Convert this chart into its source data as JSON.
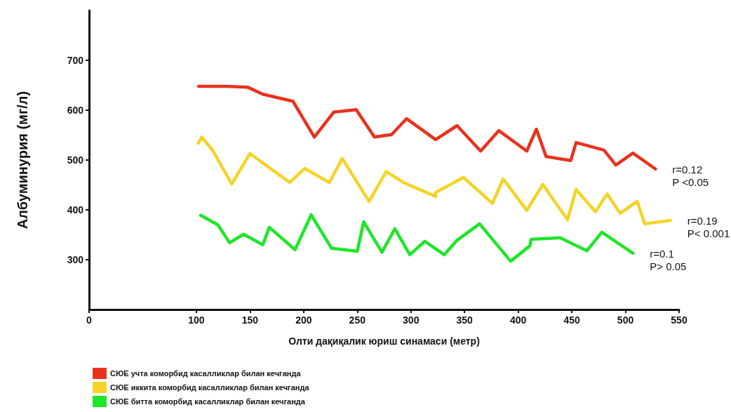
{
  "chart_data": {
    "type": "line",
    "xlabel": "Олти дақиқалик юриш синамаси (метр)",
    "ylabel": "Албуминурия (мг/л)",
    "xlim": [
      0,
      550
    ],
    "xticks": [
      0,
      100,
      150,
      200,
      250,
      300,
      350,
      400,
      450,
      500,
      550
    ],
    "ylim": [
      200,
      800
    ],
    "yticks": [
      300,
      400,
      500,
      600,
      700
    ],
    "grid": false,
    "legend": "bottom left",
    "marker": "none",
    "line_style": "solid",
    "series": [
      {
        "name": "СЮЕ учта коморбид касалликлар билан кечганда",
        "color": "#e8321e",
        "x": [
          102,
          128,
          148,
          162,
          190,
          210,
          228,
          249,
          266,
          282,
          296,
          323,
          343,
          365,
          382,
          408,
          417,
          426,
          449,
          454,
          480,
          491,
          507,
          528
        ],
        "values": [
          648,
          648,
          646,
          632,
          618,
          546,
          596,
          601,
          546,
          551,
          583,
          541,
          569,
          518,
          559,
          518,
          562,
          507,
          499,
          535,
          520,
          490,
          514,
          482
        ]
      },
      {
        "name": "СЮЕ иккита коморбид касалликлар билан кечганда",
        "color": "#f5d327",
        "x": [
          102,
          105,
          115,
          133,
          150,
          187,
          201,
          224,
          236,
          261,
          277,
          293,
          323,
          323,
          349,
          376,
          386,
          408,
          423,
          446,
          454,
          472,
          483,
          495,
          511,
          518,
          542
        ],
        "values": [
          534,
          546,
          520,
          452,
          513,
          455,
          483,
          455,
          503,
          417,
          477,
          455,
          427,
          435,
          465,
          413,
          462,
          399,
          451,
          380,
          441,
          396,
          432,
          393,
          417,
          372,
          379
        ]
      },
      {
        "name": "СЮЕ битта коморбид касалликлар билан кечганда",
        "color": "#1ee628",
        "x": [
          104,
          120,
          131,
          144,
          162,
          168,
          192,
          207,
          226,
          250,
          256,
          273,
          285,
          299,
          313,
          331,
          343,
          364,
          393,
          411,
          412,
          439,
          464,
          478,
          507
        ],
        "values": [
          389,
          370,
          334,
          351,
          330,
          365,
          320,
          390,
          323,
          317,
          376,
          315,
          362,
          310,
          337,
          310,
          339,
          372,
          297,
          328,
          341,
          344,
          318,
          355,
          313
        ]
      }
    ],
    "annotations": [
      "r=0.12\nP <0.05",
      "r=0.19\nP< 0.001",
      "r=0.1\nP> 0.05"
    ]
  }
}
